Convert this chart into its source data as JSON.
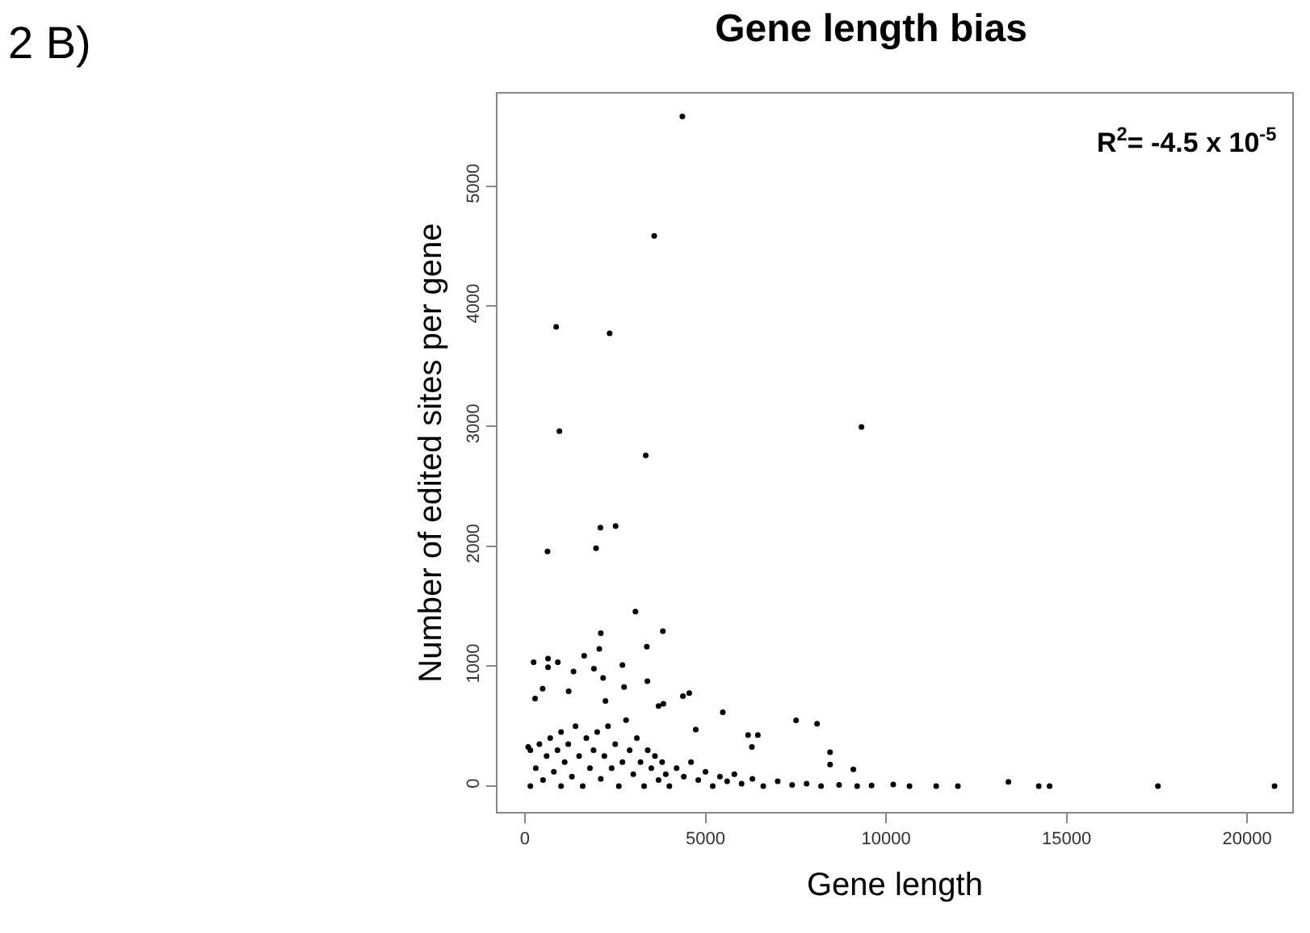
{
  "chart_data": {
    "type": "scatter",
    "title": "Gene length bias",
    "xlabel": "Gene length",
    "ylabel": "Number of edited sites per gene",
    "annotations": [
      "2 B)",
      "R$^{2}$= -4.5 x 10$^{-5}$"
    ],
    "xlim": [
      -760,
      21250
    ],
    "ylim": [
      -215,
      5770
    ],
    "xticks": [
      0,
      5000,
      10000,
      15000,
      20000
    ],
    "yticks": [
      0,
      1000,
      2000,
      3000,
      4000,
      5000
    ],
    "legend": false,
    "marker": "circle",
    "series": [
      {
        "color": "#000000",
        "x": [
          4360,
          3580,
          865,
          2345,
          955,
          9320,
          3345,
          2090,
          2510,
          625,
          1970,
          3060,
          2100,
          3820,
          3375,
          2060,
          240,
          640,
          910,
          1640,
          2700,
          1910,
          640,
          1345,
          2165,
          3390,
          2745,
          1210,
          490,
          4550,
          4375,
          280,
          2230,
          5480,
          3835,
          3700,
          7510,
          8090,
          6180,
          6450,
          6285,
          4730,
          8450,
          8450,
          9095,
          90,
          13390,
          14230,
          14530,
          17530,
          20760,
          10200,
          10650,
          11390,
          11990,
          150,
          150,
          300,
          400,
          500,
          600,
          700,
          800,
          900,
          1000,
          1000,
          1100,
          1200,
          1300,
          1400,
          1500,
          1600,
          1700,
          1800,
          1900,
          2000,
          2100,
          2200,
          2300,
          2400,
          2500,
          2600,
          2700,
          2800,
          2900,
          3000,
          3100,
          3200,
          3300,
          3400,
          3500,
          3600,
          3700,
          3800,
          3900,
          4000,
          4200,
          4400,
          4600,
          4800,
          5000,
          5200,
          5400,
          5600,
          5800,
          6000,
          6300,
          6600,
          7000,
          7400,
          7800,
          8200,
          8700,
          9200,
          9600
        ],
        "values": [
          5580,
          4585,
          3826,
          3772,
          2957,
          2992,
          2755,
          2153,
          2167,
          1956,
          1983,
          1454,
          1274,
          1292,
          1162,
          1144,
          1032,
          1063,
          1032,
          1086,
          1009,
          978,
          990,
          955,
          902,
          875,
          825,
          790,
          812,
          776,
          750,
          730,
          710,
          615,
          686,
          668,
          548,
          520,
          426,
          426,
          327,
          471,
          283,
          180,
          139,
          327,
          36,
          0,
          0,
          0,
          0,
          13,
          0,
          0,
          0,
          0,
          300,
          150,
          350,
          50,
          250,
          400,
          120,
          300,
          0,
          450,
          200,
          350,
          80,
          500,
          250,
          0,
          400,
          150,
          300,
          450,
          60,
          250,
          500,
          150,
          350,
          0,
          200,
          550,
          300,
          100,
          400,
          200,
          0,
          300,
          150,
          250,
          50,
          200,
          100,
          0,
          150,
          80,
          200,
          50,
          120,
          0,
          80,
          40,
          100,
          20,
          60,
          0,
          40,
          10,
          20,
          0,
          10,
          0,
          5
        ]
      }
    ]
  }
}
